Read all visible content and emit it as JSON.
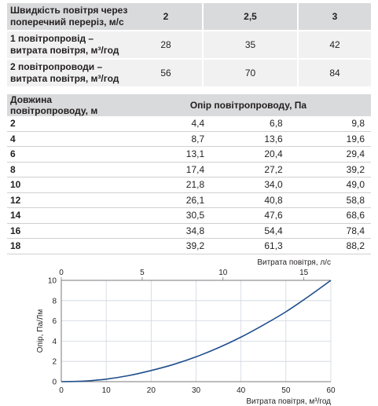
{
  "table_top": {
    "header_label": "Швидкість повітря через поперечний переріз, м/с",
    "speeds": [
      "2",
      "2,5",
      "3"
    ],
    "rows": [
      {
        "label": "1 повітропровід – витрата повітря, м³/год",
        "values": [
          "28",
          "35",
          "42"
        ]
      },
      {
        "label": "2 повітропроводи – витрата повітря, м³/год",
        "values": [
          "56",
          "70",
          "84"
        ]
      }
    ]
  },
  "table_resistance": {
    "col1": "Довжина повітропроводу, м",
    "col2": "Опір повітропроводу, Па",
    "rows": [
      {
        "len": "2",
        "v": [
          "4,4",
          "6,8",
          "9,8"
        ]
      },
      {
        "len": "4",
        "v": [
          "8,7",
          "13,6",
          "19,6"
        ]
      },
      {
        "len": "6",
        "v": [
          "13,1",
          "20,4",
          "29,4"
        ]
      },
      {
        "len": "8",
        "v": [
          "17,4",
          "27,2",
          "39,2"
        ]
      },
      {
        "len": "10",
        "v": [
          "21,8",
          "34,0",
          "49,0"
        ]
      },
      {
        "len": "12",
        "v": [
          "26,1",
          "40,8",
          "58,8"
        ]
      },
      {
        "len": "14",
        "v": [
          "30,5",
          "47,6",
          "68,6"
        ]
      },
      {
        "len": "16",
        "v": [
          "34,8",
          "54,4",
          "78,4"
        ]
      },
      {
        "len": "18",
        "v": [
          "39,2",
          "61,3",
          "88,2"
        ]
      }
    ]
  },
  "chart_data": {
    "type": "line",
    "xlabel": "Витрата повітря, м³/год",
    "x2label": "Витрата повітря, л/с",
    "ylabel": "Опір, Па/Лм",
    "xlim": [
      0,
      60
    ],
    "x2lim": [
      0,
      16.67
    ],
    "ylim": [
      0,
      10
    ],
    "xticks": [
      "0",
      "10",
      "20",
      "30",
      "40",
      "50",
      "60"
    ],
    "x2ticks": [
      "0",
      "5",
      "10",
      "15"
    ],
    "yticks": [
      "0",
      "2",
      "4",
      "6",
      "8",
      "10"
    ],
    "line_color": "#1f4e8c",
    "points": [
      [
        0,
        0
      ],
      [
        5,
        0.05
      ],
      [
        10,
        0.25
      ],
      [
        15,
        0.6
      ],
      [
        20,
        1.1
      ],
      [
        25,
        1.7
      ],
      [
        30,
        2.45
      ],
      [
        35,
        3.35
      ],
      [
        40,
        4.4
      ],
      [
        45,
        5.6
      ],
      [
        50,
        6.9
      ],
      [
        55,
        8.4
      ],
      [
        60,
        10
      ]
    ]
  }
}
